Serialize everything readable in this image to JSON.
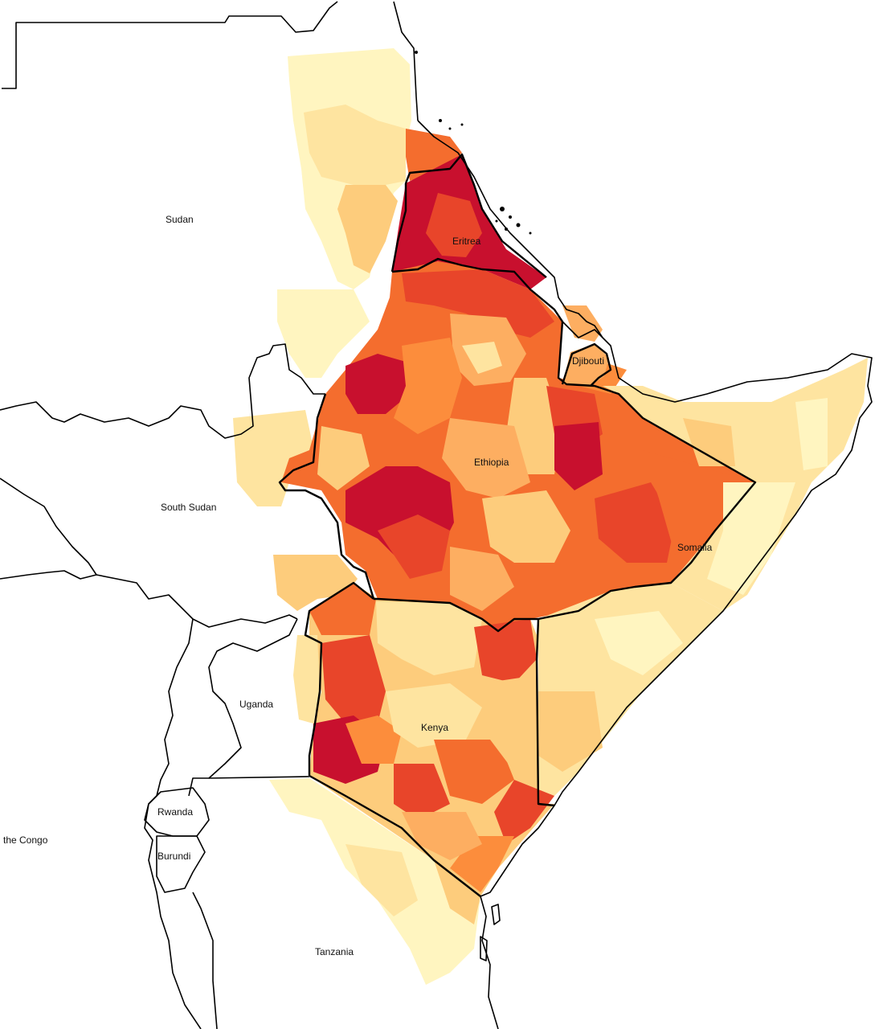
{
  "labels": {
    "sudan": "Sudan",
    "south_sudan": "South Sudan",
    "eritrea": "Eritrea",
    "djibouti": "Djibouti",
    "ethiopia": "Ethiopia",
    "somalia": "Somalia",
    "uganda": "Uganda",
    "kenya": "Kenya",
    "rwanda": "Rwanda",
    "burundi": "Burundi",
    "congo": "the Congo",
    "tanzania": "Tanzania"
  },
  "palette": {
    "very_low": "#fff5c0",
    "low": "#fee4a0",
    "low_mid": "#fdcc7c",
    "mid": "#fdae61",
    "mid_high": "#fc8d3c",
    "high": "#f46d2e",
    "very_high": "#e8452a",
    "extreme": "#c8102e"
  }
}
